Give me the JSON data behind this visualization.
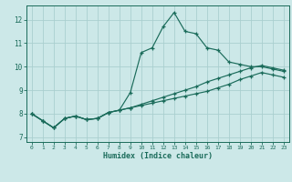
{
  "xlabel": "Humidex (Indice chaleur)",
  "ylabel": "",
  "bg_color": "#cce8e8",
  "grid_color": "#aacfcf",
  "line_color": "#1a6b5a",
  "x_data": [
    0,
    1,
    2,
    3,
    4,
    5,
    6,
    7,
    8,
    9,
    10,
    11,
    12,
    13,
    14,
    15,
    16,
    17,
    18,
    19,
    20,
    21,
    22,
    23
  ],
  "line1": [
    8.0,
    7.7,
    7.4,
    7.8,
    7.9,
    7.75,
    7.8,
    8.05,
    8.15,
    8.25,
    8.35,
    8.45,
    8.55,
    8.65,
    8.75,
    8.85,
    8.95,
    9.1,
    9.25,
    9.45,
    9.6,
    9.75,
    9.65,
    9.55
  ],
  "line2": [
    8.0,
    7.7,
    7.4,
    7.8,
    7.9,
    7.75,
    7.8,
    8.05,
    8.15,
    8.25,
    8.4,
    8.55,
    8.7,
    8.85,
    9.0,
    9.15,
    9.35,
    9.5,
    9.65,
    9.8,
    9.95,
    10.05,
    9.95,
    9.85
  ],
  "line3": [
    8.0,
    7.7,
    7.4,
    7.8,
    7.9,
    7.75,
    7.8,
    8.05,
    8.15,
    8.9,
    10.6,
    10.8,
    11.7,
    12.3,
    11.5,
    11.4,
    10.8,
    10.7,
    10.2,
    10.1,
    10.0,
    10.0,
    9.9,
    9.8
  ],
  "ylim": [
    6.8,
    12.6
  ],
  "xlim": [
    -0.5,
    23.5
  ],
  "yticks": [
    7,
    8,
    9,
    10,
    11,
    12
  ],
  "xticks": [
    0,
    1,
    2,
    3,
    4,
    5,
    6,
    7,
    8,
    9,
    10,
    11,
    12,
    13,
    14,
    15,
    16,
    17,
    18,
    19,
    20,
    21,
    22,
    23
  ]
}
